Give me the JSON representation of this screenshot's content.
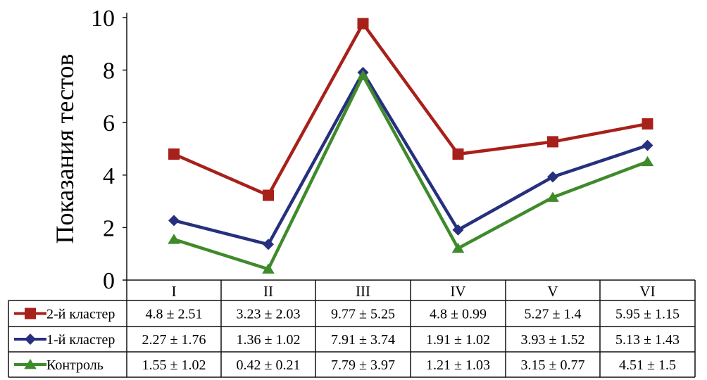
{
  "chart_data": {
    "type": "line",
    "title": "",
    "xlabel": "",
    "ylabel": "Показания тестов",
    "ylim": [
      0,
      10
    ],
    "yticks": [
      0,
      2,
      4,
      6,
      8,
      10
    ],
    "grid": false,
    "legend": "table-left",
    "categories": [
      "I",
      "II",
      "III",
      "IV",
      "V",
      "VI"
    ],
    "series": [
      {
        "name": "2-й кластер",
        "color": "#a8201a",
        "marker": "square",
        "values": [
          4.8,
          3.23,
          9.77,
          4.8,
          5.27,
          5.95
        ],
        "labels": [
          "4.8 ± 2.51",
          "3.23 ± 2.03",
          "9.77 ± 5.25",
          "4.8 ± 0.99",
          "5.27 ± 1.4",
          "5.95 ± 1.15"
        ]
      },
      {
        "name": "1-й кластер",
        "color": "#26307e",
        "marker": "diamond",
        "values": [
          2.27,
          1.36,
          7.91,
          1.91,
          3.93,
          5.13
        ],
        "labels": [
          "2.27 ± 1.76",
          "1.36 ± 1.02",
          "7.91 ± 3.74",
          "1.91 ± 1.02",
          "3.93 ± 1.52",
          "5.13 ± 1.43"
        ]
      },
      {
        "name": "Контроль",
        "color": "#3f8a2a",
        "marker": "triangle",
        "values": [
          1.55,
          0.42,
          7.79,
          1.21,
          3.15,
          4.51
        ],
        "labels": [
          "1.55 ± 1.02",
          "0.42 ± 0.21",
          "7.79 ± 3.97",
          "1.21 ± 1.03",
          "3.15 ± 0.77",
          "4.51 ± 1.5"
        ]
      }
    ]
  }
}
